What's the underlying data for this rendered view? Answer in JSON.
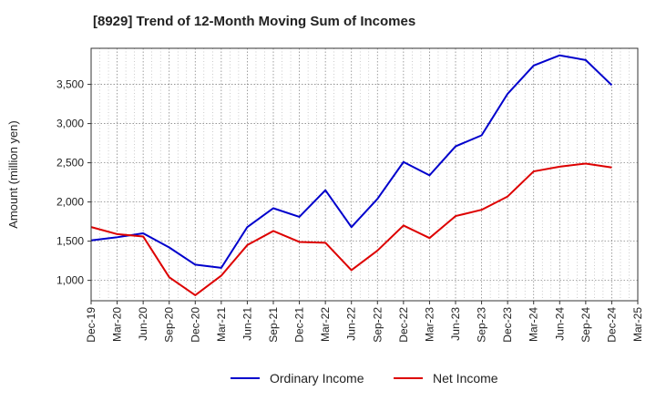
{
  "chart_data": {
    "type": "line",
    "title": "[8929]  Trend of 12-Month Moving Sum of Incomes",
    "xlabel": "",
    "ylabel": "Amount (million yen)",
    "categories": [
      "Dec-19",
      "Mar-20",
      "Jun-20",
      "Sep-20",
      "Dec-20",
      "Mar-21",
      "Jun-21",
      "Sep-21",
      "Dec-21",
      "Mar-22",
      "Jun-22",
      "Sep-22",
      "Dec-22",
      "Mar-23",
      "Jun-23",
      "Sep-23",
      "Dec-23",
      "Mar-24",
      "Jun-24",
      "Sep-24",
      "Dec-24",
      "Mar-25"
    ],
    "ylim": [
      740,
      3960
    ],
    "yticks": [
      1000,
      1500,
      2000,
      2500,
      3000,
      3500
    ],
    "ytick_labels": [
      "1,000",
      "1,500",
      "2,000",
      "2,500",
      "3,000",
      "3,500"
    ],
    "grid": true,
    "legend_position": "bottom",
    "series": [
      {
        "name": "Ordinary Income",
        "color": "#0000cc",
        "values": [
          1510,
          1550,
          1600,
          1420,
          1200,
          1160,
          1680,
          1920,
          1810,
          2150,
          1680,
          2040,
          2510,
          2340,
          2710,
          2850,
          3380,
          3740,
          3870,
          3810,
          3490,
          null
        ]
      },
      {
        "name": "Net Income",
        "color": "#dd0000",
        "values": [
          1680,
          1590,
          1560,
          1040,
          810,
          1060,
          1450,
          1630,
          1490,
          1480,
          1130,
          1380,
          1700,
          1540,
          1820,
          1900,
          2070,
          2390,
          2450,
          2490,
          2440,
          null
        ]
      }
    ]
  }
}
